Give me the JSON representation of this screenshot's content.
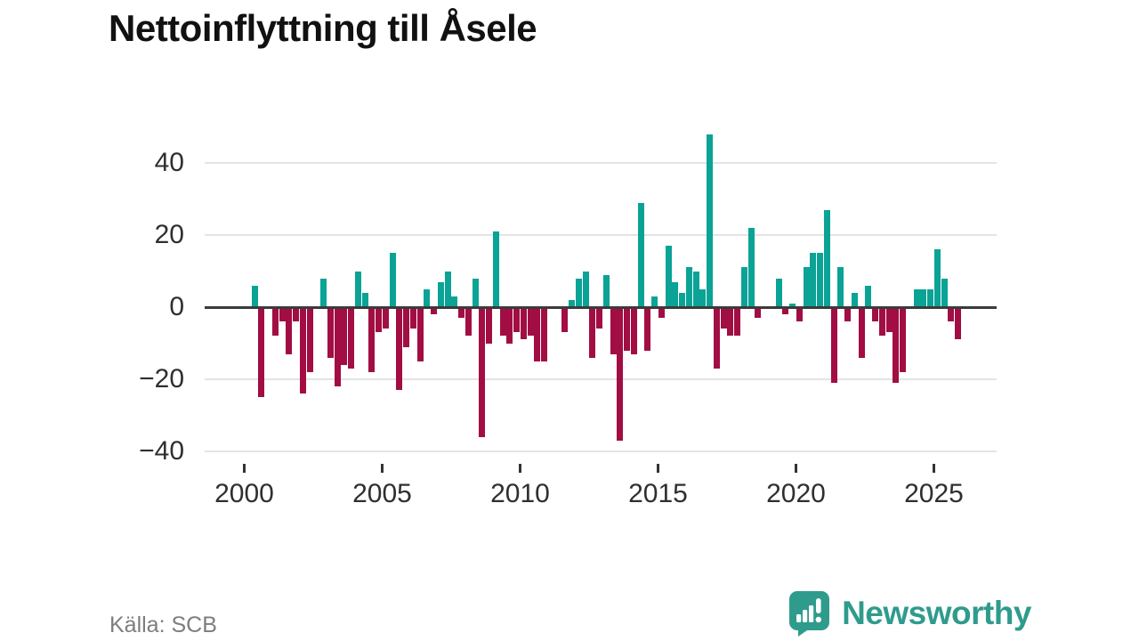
{
  "title": "Nettoinflyttning till Åsele",
  "source": "Källa: SCB",
  "branding": {
    "name": "Newsworthy",
    "icon": "speech-bubble-bar-chart-icon"
  },
  "colors": {
    "positive_bar": "#0aa396",
    "negative_bar": "#a20d43",
    "zero_line": "#3b3b3b",
    "gridline": "#e4e4e4",
    "axis_text": "#2f2f2f",
    "title_text": "#111111",
    "source_text": "#7d7d7d",
    "brand_teal": "#2f9b8d"
  },
  "chart_data": {
    "type": "bar",
    "title": "Nettoinflyttning till Åsele",
    "xlabel": "",
    "ylabel": "",
    "frequency": "quarterly",
    "start_period": "2000Q1",
    "end_period": "2025Q4",
    "grid": "horizontal",
    "legend": "none",
    "ylim": [
      -45,
      53
    ],
    "y_ticks": [
      {
        "label": "40",
        "value": 40
      },
      {
        "label": "20",
        "value": 20
      },
      {
        "label": "0",
        "value": 0
      },
      {
        "label": "−20",
        "value": -20
      },
      {
        "label": "−40",
        "value": -40
      }
    ],
    "x_ticks": [
      {
        "label": "2000",
        "year": 2000
      },
      {
        "label": "2005",
        "year": 2005
      },
      {
        "label": "2010",
        "year": 2010
      },
      {
        "label": "2015",
        "year": 2015
      },
      {
        "label": "2020",
        "year": 2020
      },
      {
        "label": "2025",
        "year": 2025
      }
    ],
    "values": [
      0,
      6,
      -25,
      0,
      -8,
      -4,
      -13,
      -4,
      -24,
      -18,
      0,
      8,
      -14,
      -22,
      -16,
      -17,
      10,
      4,
      -18,
      -7,
      -6,
      15,
      -23,
      -11,
      -6,
      -15,
      5,
      -2,
      7,
      10,
      3,
      -3,
      -8,
      8,
      -36,
      -10,
      21,
      -8,
      -10,
      -7,
      -9,
      -8,
      -15,
      -15,
      0,
      0,
      -7,
      2,
      8,
      10,
      -14,
      -6,
      9,
      -13,
      -37,
      -12,
      -13,
      29,
      -12,
      3,
      -3,
      17,
      7,
      4,
      11,
      10,
      5,
      48,
      -17,
      -6,
      -8,
      -8,
      11,
      22,
      -3,
      0,
      0,
      8,
      -2,
      1,
      -4,
      11,
      15,
      15,
      27,
      -21,
      11,
      -4,
      4,
      -14,
      6,
      -4,
      -8,
      -7,
      -21,
      -18,
      0,
      5,
      5,
      5,
      16,
      8,
      -4,
      -9
    ]
  }
}
